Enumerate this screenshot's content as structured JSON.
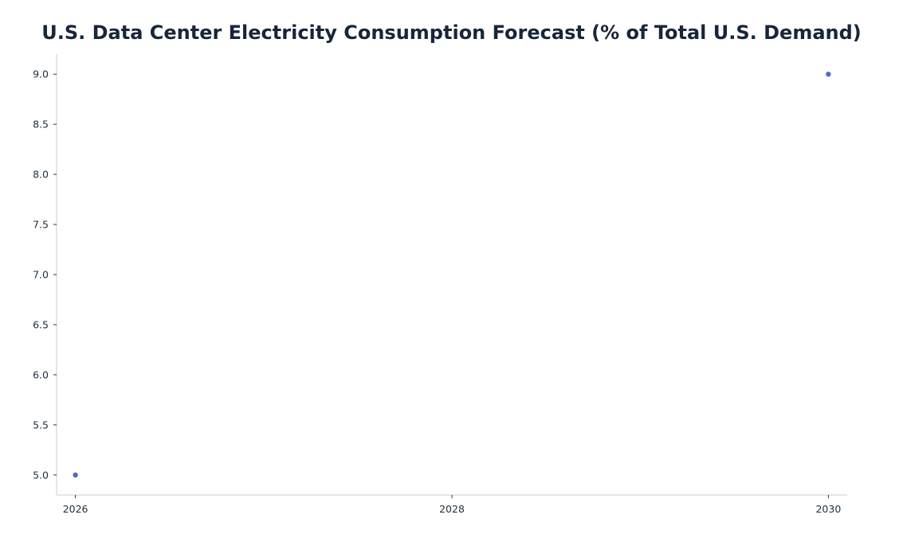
{
  "chart_data": {
    "type": "scatter",
    "title": "U.S. Data Center Electricity Consumption Forecast (% of Total U.S. Demand)",
    "xlabel": "",
    "ylabel": "",
    "x": [
      2026,
      2030
    ],
    "y": [
      5.0,
      9.0
    ],
    "xlim": [
      2025.9,
      2030.1
    ],
    "ylim": [
      4.8,
      9.2
    ],
    "x_ticks": [
      2026,
      2028,
      2030
    ],
    "x_tick_labels": [
      "2026",
      "2028",
      "2030"
    ],
    "y_ticks": [
      5.0,
      5.5,
      6.0,
      6.5,
      7.0,
      7.5,
      8.0,
      8.5,
      9.0
    ],
    "y_tick_labels": [
      "5.0",
      "5.5",
      "6.0",
      "6.5",
      "7.0",
      "7.5",
      "8.0",
      "8.5",
      "9.0"
    ],
    "grid": false,
    "legend": "none",
    "marker_color": "#4c6fbf",
    "axis_color": "#cccccc",
    "title_color": "#17263a"
  }
}
